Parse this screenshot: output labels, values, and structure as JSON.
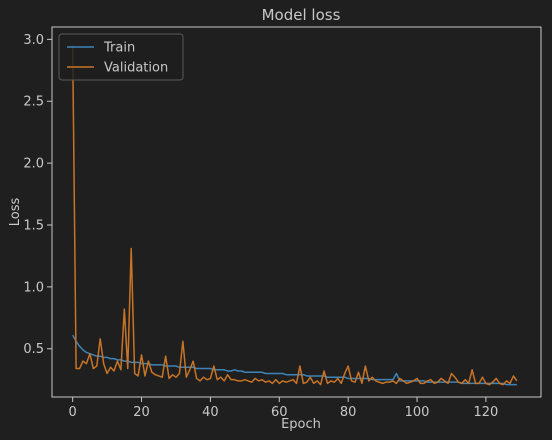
{
  "chart_data": {
    "type": "line",
    "title": "Model loss",
    "xlabel": "Epoch",
    "ylabel": "Loss",
    "xlim": [
      -6,
      136
    ],
    "ylim": [
      0.11,
      3.1
    ],
    "xticks": [
      0,
      20,
      40,
      60,
      80,
      100,
      120
    ],
    "yticks": [
      0.5,
      1.0,
      1.5,
      2.0,
      2.5,
      3.0
    ],
    "xtick_labels": [
      "0",
      "20",
      "40",
      "60",
      "80",
      "100",
      "120"
    ],
    "ytick_labels": [
      "0.5",
      "1.0",
      "1.5",
      "2.0",
      "2.5",
      "3.0"
    ],
    "grid": false,
    "legend_position": "top-left",
    "colors": {
      "background": "#1f1f1f",
      "axes": "#c8c8c8",
      "train": "#3d84b8",
      "validation": "#c87426"
    },
    "series": [
      {
        "name": "Train",
        "x": [
          0,
          1,
          2,
          3,
          4,
          5,
          6,
          7,
          8,
          9,
          10,
          11,
          12,
          13,
          14,
          15,
          16,
          17,
          18,
          19,
          20,
          21,
          22,
          23,
          24,
          25,
          26,
          27,
          28,
          29,
          30,
          31,
          32,
          33,
          34,
          35,
          36,
          37,
          38,
          39,
          40,
          41,
          42,
          43,
          44,
          45,
          46,
          47,
          48,
          49,
          50,
          51,
          52,
          53,
          54,
          55,
          56,
          57,
          58,
          59,
          60,
          61,
          62,
          63,
          64,
          65,
          66,
          67,
          68,
          69,
          70,
          71,
          72,
          73,
          74,
          75,
          76,
          77,
          78,
          79,
          80,
          81,
          82,
          83,
          84,
          85,
          86,
          87,
          88,
          89,
          90,
          91,
          92,
          93,
          94,
          95,
          96,
          97,
          98,
          99,
          100,
          101,
          102,
          103,
          104,
          105,
          106,
          107,
          108,
          109,
          110,
          111,
          112,
          113,
          114,
          115,
          116,
          117,
          118,
          119,
          120,
          121,
          122,
          123,
          124,
          125,
          126,
          127,
          128,
          129
        ],
        "y": [
          0.61,
          0.56,
          0.52,
          0.49,
          0.47,
          0.46,
          0.45,
          0.44,
          0.44,
          0.43,
          0.43,
          0.42,
          0.42,
          0.41,
          0.41,
          0.4,
          0.4,
          0.39,
          0.39,
          0.39,
          0.38,
          0.38,
          0.38,
          0.37,
          0.37,
          0.37,
          0.37,
          0.36,
          0.36,
          0.36,
          0.36,
          0.35,
          0.35,
          0.35,
          0.35,
          0.35,
          0.34,
          0.34,
          0.34,
          0.34,
          0.34,
          0.33,
          0.33,
          0.33,
          0.33,
          0.32,
          0.32,
          0.33,
          0.32,
          0.32,
          0.31,
          0.31,
          0.31,
          0.31,
          0.31,
          0.31,
          0.3,
          0.3,
          0.3,
          0.3,
          0.3,
          0.3,
          0.29,
          0.29,
          0.29,
          0.29,
          0.29,
          0.29,
          0.28,
          0.28,
          0.28,
          0.28,
          0.28,
          0.28,
          0.27,
          0.27,
          0.27,
          0.27,
          0.27,
          0.27,
          0.26,
          0.26,
          0.26,
          0.26,
          0.26,
          0.26,
          0.26,
          0.25,
          0.25,
          0.25,
          0.25,
          0.25,
          0.25,
          0.25,
          0.3,
          0.24,
          0.24,
          0.24,
          0.24,
          0.24,
          0.24,
          0.24,
          0.24,
          0.23,
          0.23,
          0.23,
          0.23,
          0.23,
          0.23,
          0.23,
          0.23,
          0.23,
          0.23,
          0.22,
          0.22,
          0.22,
          0.22,
          0.22,
          0.22,
          0.22,
          0.22,
          0.22,
          0.22,
          0.22,
          0.22,
          0.22,
          0.21,
          0.21,
          0.21,
          0.21
        ]
      },
      {
        "name": "Validation",
        "x": [
          0,
          1,
          2,
          3,
          4,
          5,
          6,
          7,
          8,
          9,
          10,
          11,
          12,
          13,
          14,
          15,
          16,
          17,
          18,
          19,
          20,
          21,
          22,
          23,
          24,
          25,
          26,
          27,
          28,
          29,
          30,
          31,
          32,
          33,
          34,
          35,
          36,
          37,
          38,
          39,
          40,
          41,
          42,
          43,
          44,
          45,
          46,
          47,
          48,
          49,
          50,
          51,
          52,
          53,
          54,
          55,
          56,
          57,
          58,
          59,
          60,
          61,
          62,
          63,
          64,
          65,
          66,
          67,
          68,
          69,
          70,
          71,
          72,
          73,
          74,
          75,
          76,
          77,
          78,
          79,
          80,
          81,
          82,
          83,
          84,
          85,
          86,
          87,
          88,
          89,
          90,
          91,
          92,
          93,
          94,
          95,
          96,
          97,
          98,
          99,
          100,
          101,
          102,
          103,
          104,
          105,
          106,
          107,
          108,
          109,
          110,
          111,
          112,
          113,
          114,
          115,
          116,
          117,
          118,
          119,
          120,
          121,
          122,
          123,
          124,
          125,
          126,
          127,
          128,
          129
        ],
        "y": [
          2.95,
          0.34,
          0.34,
          0.4,
          0.38,
          0.46,
          0.34,
          0.36,
          0.58,
          0.38,
          0.3,
          0.35,
          0.32,
          0.4,
          0.33,
          0.82,
          0.34,
          1.31,
          0.3,
          0.28,
          0.45,
          0.28,
          0.4,
          0.31,
          0.29,
          0.28,
          0.27,
          0.44,
          0.26,
          0.29,
          0.27,
          0.3,
          0.56,
          0.27,
          0.33,
          0.4,
          0.26,
          0.24,
          0.27,
          0.25,
          0.26,
          0.36,
          0.25,
          0.27,
          0.24,
          0.29,
          0.25,
          0.25,
          0.24,
          0.24,
          0.25,
          0.24,
          0.23,
          0.26,
          0.24,
          0.25,
          0.23,
          0.24,
          0.22,
          0.25,
          0.22,
          0.24,
          0.23,
          0.24,
          0.25,
          0.22,
          0.36,
          0.22,
          0.23,
          0.27,
          0.22,
          0.24,
          0.21,
          0.32,
          0.22,
          0.24,
          0.23,
          0.26,
          0.22,
          0.3,
          0.36,
          0.24,
          0.23,
          0.31,
          0.22,
          0.36,
          0.24,
          0.27,
          0.24,
          0.23,
          0.22,
          0.23,
          0.23,
          0.24,
          0.22,
          0.26,
          0.24,
          0.22,
          0.23,
          0.24,
          0.26,
          0.22,
          0.22,
          0.24,
          0.25,
          0.22,
          0.23,
          0.26,
          0.24,
          0.22,
          0.3,
          0.27,
          0.23,
          0.22,
          0.25,
          0.22,
          0.33,
          0.22,
          0.22,
          0.27,
          0.22,
          0.21,
          0.23,
          0.26,
          0.22,
          0.21,
          0.24,
          0.22,
          0.28,
          0.24
        ]
      }
    ]
  }
}
